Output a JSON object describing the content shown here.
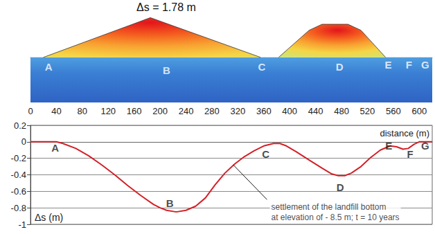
{
  "chart_data": [
    {
      "type": "section",
      "title": "Δs = 1.78 m",
      "xlim": [
        0,
        620
      ],
      "xticks": [
        0,
        40,
        80,
        120,
        160,
        200,
        240,
        280,
        320,
        360,
        400,
        440,
        480,
        520,
        560,
        600
      ],
      "ylim": [
        -75,
        70
      ],
      "tick_labels": "x",
      "grid": false,
      "ground": 0,
      "profiles": [
        {
          "x": [
            20,
            185,
            355
          ],
          "y": [
            0,
            66,
            0
          ]
        },
        {
          "x": [
            383,
            430,
            450,
            490,
            510,
            548
          ],
          "y": [
            0,
            45,
            55,
            55,
            45,
            0
          ]
        }
      ],
      "labels": [
        {
          "text": "A",
          "x": 28,
          "y": -16
        },
        {
          "text": "B",
          "x": 210,
          "y": -22
        },
        {
          "text": "C",
          "x": 357,
          "y": -16
        },
        {
          "text": "D",
          "x": 477,
          "y": -16
        },
        {
          "text": "E",
          "x": 552,
          "y": -12
        },
        {
          "text": "F",
          "x": 584,
          "y": -12
        },
        {
          "text": "G",
          "x": 609,
          "y": -12
        }
      ]
    },
    {
      "type": "line",
      "xlim": [
        0,
        620
      ],
      "ylim": [
        -1,
        0.2
      ],
      "yticks": [
        0.2,
        0,
        -0.2,
        -0.4,
        -0.6,
        -0.8,
        -1
      ],
      "tick_labels": "y",
      "grid": true,
      "xlabel": "distance (m)",
      "ylabel": "Δs (m)",
      "color": "#d42027",
      "x": [
        0,
        20,
        40,
        50,
        70,
        90,
        110,
        130,
        150,
        170,
        190,
        200,
        210,
        225,
        240,
        255,
        270,
        285,
        300,
        315,
        330,
        345,
        360,
        375,
        385,
        395,
        410,
        430,
        450,
        465,
        475,
        485,
        495,
        510,
        525,
        540,
        555,
        565,
        575,
        583,
        592,
        600,
        620
      ],
      "values": [
        0,
        0,
        0,
        -0.02,
        -0.08,
        -0.17,
        -0.28,
        -0.4,
        -0.53,
        -0.65,
        -0.76,
        -0.8,
        -0.83,
        -0.85,
        -0.83,
        -0.78,
        -0.68,
        -0.52,
        -0.38,
        -0.27,
        -0.18,
        -0.11,
        -0.05,
        -0.02,
        -0.02,
        -0.05,
        -0.12,
        -0.22,
        -0.32,
        -0.39,
        -0.41,
        -0.41,
        -0.38,
        -0.3,
        -0.19,
        -0.1,
        -0.05,
        -0.06,
        -0.09,
        -0.08,
        -0.03,
        0,
        0
      ],
      "labels": [
        {
          "text": "A",
          "x": 38,
          "y": -0.07
        },
        {
          "text": "B",
          "x": 215,
          "y": -0.74
        },
        {
          "text": "C",
          "x": 363,
          "y": -0.15
        },
        {
          "text": "D",
          "x": 478,
          "y": -0.55
        },
        {
          "text": "E",
          "x": 553,
          "y": -0.05
        },
        {
          "text": "F",
          "x": 586,
          "y": -0.15
        },
        {
          "text": "G",
          "x": 609,
          "y": -0.05
        }
      ],
      "annotation": {
        "lines": [
          "settlement of the landfill bottom",
          "at elevation of - 8.5 m; t = 10 years"
        ],
        "xytext": [
          365,
          -0.7
        ],
        "xy": [
          313,
          -0.28
        ]
      }
    }
  ]
}
